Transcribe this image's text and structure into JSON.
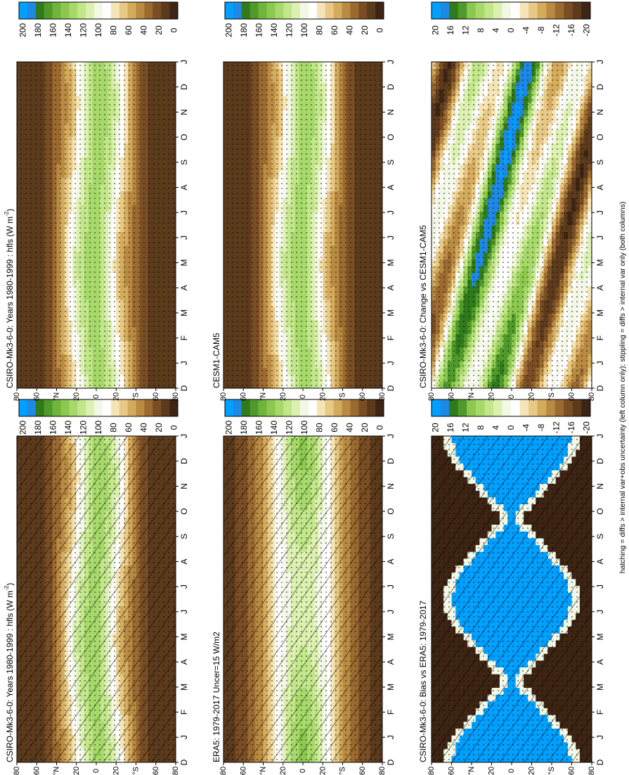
{
  "footnote": "hatching = diffs > internal var+obs uncertainty (left column only); stippling = diffs > internal var only (both columns)",
  "colors": {
    "hfls_palette": [
      "#3d2413",
      "#5c3a1c",
      "#7a4e24",
      "#9b6a30",
      "#b98a42",
      "#d4aa5c",
      "#e7c985",
      "#f5e4b5",
      "#ffffff",
      "#f3f8e6",
      "#dcf0b0",
      "#c2e68a",
      "#a6d96a",
      "#8cc84f",
      "#6fb53b",
      "#4f9a2a",
      "#2f7a1a",
      "#1e88e5",
      "#00a0ff"
    ],
    "diff_palette": [
      "#3d2413",
      "#5c3a1c",
      "#7a4e24",
      "#9b6a30",
      "#b98a42",
      "#d4aa5c",
      "#e7c985",
      "#f5e4b5",
      "#ffffff",
      "#f3f8e6",
      "#dcf0b0",
      "#c2e68a",
      "#a6d96a",
      "#8cc84f",
      "#4f9a2a",
      "#2f7a1a",
      "#1e88e5",
      "#00a0ff"
    ]
  },
  "chart_data": [
    {
      "id": "top-left",
      "type": "heatmap",
      "title": "CSIRO-Mk3-6-0: Years 1980-1999 : hfls (W m",
      "title_sup": "-2",
      "title_end": ")",
      "x_axis": "month",
      "y_axis": "latitude",
      "colorbar": {
        "ticks": [
          "0",
          "20",
          "40",
          "60",
          "80",
          "100",
          "120",
          "140",
          "160",
          "180",
          "200"
        ]
      },
      "overlay": "hatching and stippling"
    },
    {
      "id": "top-right",
      "type": "heatmap",
      "title": "CSIRO-Mk3-6-0: Years 1980-1999 : hfls (W m",
      "title_sup": "-2",
      "title_end": ")",
      "x_axis": "month",
      "y_axis": "latitude",
      "colorbar": {
        "ticks": [
          "0",
          "20",
          "40",
          "60",
          "80",
          "100",
          "120",
          "140",
          "160",
          "180",
          "200"
        ]
      },
      "overlay": "stippling"
    },
    {
      "id": "mid-left",
      "type": "heatmap",
      "title": "ERA5: 1979-2017 Uncer=15 W/m2",
      "x_axis": "month",
      "y_axis": "latitude",
      "colorbar": {
        "ticks": [
          "0",
          "20",
          "40",
          "60",
          "80",
          "100",
          "120",
          "140",
          "160",
          "180",
          "200"
        ]
      },
      "overlay": "hatching and stippling"
    },
    {
      "id": "mid-right",
      "type": "heatmap",
      "title": "CESM1-CAM5",
      "x_axis": "month",
      "y_axis": "latitude",
      "colorbar": {
        "ticks": [
          "0",
          "20",
          "40",
          "60",
          "80",
          "100",
          "120",
          "140",
          "160",
          "180",
          "200"
        ]
      },
      "overlay": "stippling"
    },
    {
      "id": "bot-left",
      "type": "heatmap",
      "title": "CSIRO-Mk3-6-0: Bias vs ERA5: 1979-2017",
      "x_axis": "month",
      "y_axis": "latitude",
      "colorbar": {
        "ticks": [
          "-20",
          "-16",
          "-12",
          "-8",
          "-4",
          "0",
          "4",
          "8",
          "12",
          "16",
          "20"
        ]
      },
      "overlay": "hatching and stippling"
    },
    {
      "id": "bot-right",
      "type": "heatmap",
      "title": "CSIRO-Mk3-6-0: Change vs CESM1-CAM5",
      "x_axis": "month",
      "y_axis": "latitude",
      "colorbar": {
        "ticks": [
          "-20",
          "-16",
          "-12",
          "-8",
          "-4",
          "0",
          "4",
          "8",
          "12",
          "16",
          "20"
        ]
      },
      "overlay": "stippling"
    }
  ],
  "month_labels": [
    "D",
    "J",
    "F",
    "M",
    "A",
    "M",
    "J",
    "J",
    "A",
    "S",
    "O",
    "N",
    "D",
    "J"
  ],
  "lat_labels": [
    "80",
    "60",
    "°N",
    "20",
    "0",
    "20",
    "°S",
    "60",
    "80"
  ]
}
